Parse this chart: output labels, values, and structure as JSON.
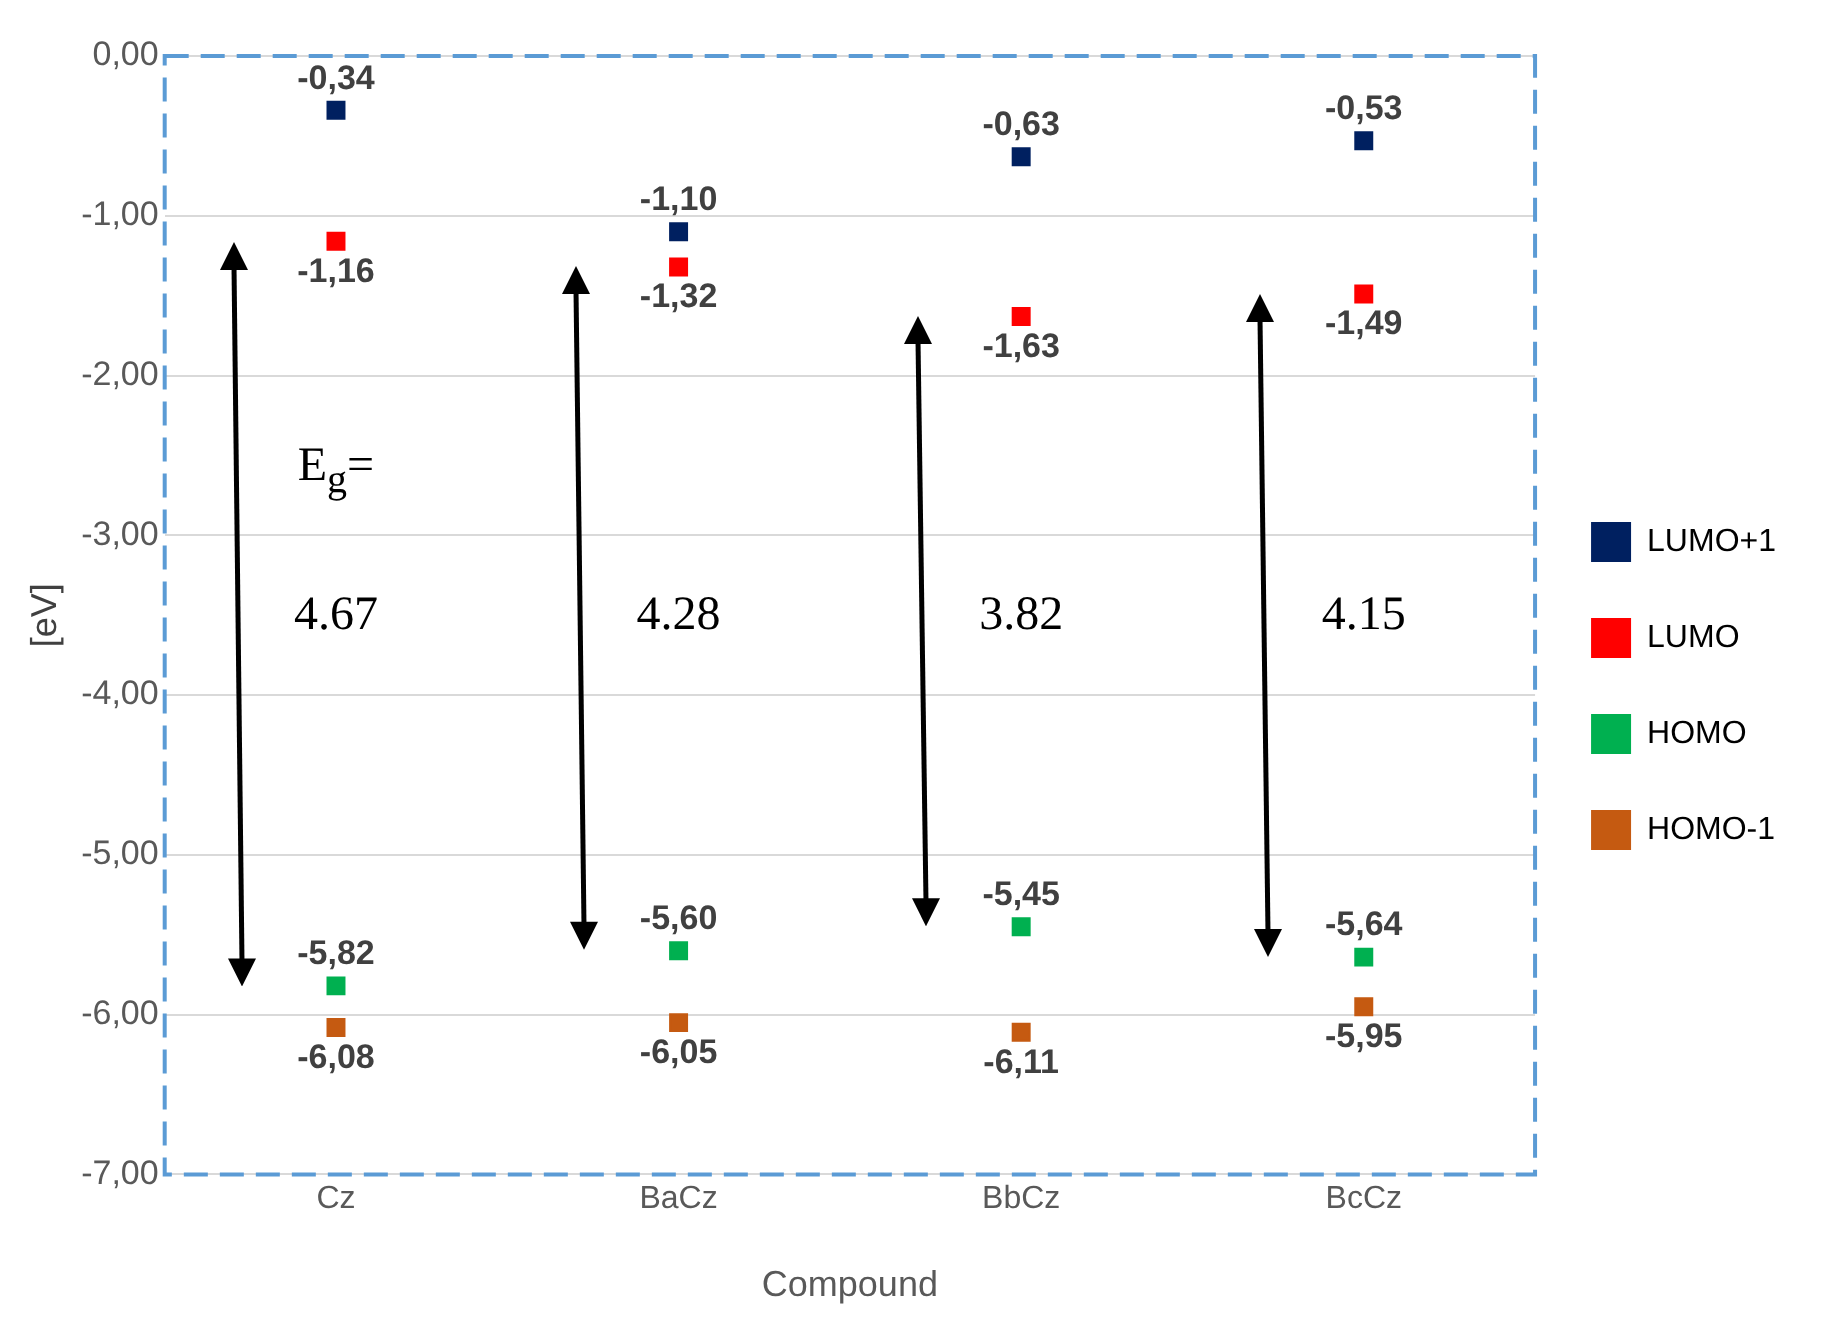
{
  "chart_data": {
    "type": "scatter",
    "xlabel": "Compound",
    "ylabel": "[eV]",
    "categories": [
      "Cz",
      "BaCz",
      "BbCz",
      "BcCz"
    ],
    "ylim": [
      -7,
      0
    ],
    "yticks": [
      {
        "value": 0,
        "label": "0,00"
      },
      {
        "value": -1,
        "label": "-1,00"
      },
      {
        "value": -2,
        "label": "-2,00"
      },
      {
        "value": -3,
        "label": "-3,00"
      },
      {
        "value": -4,
        "label": "-4,00"
      },
      {
        "value": -5,
        "label": "-5,00"
      },
      {
        "value": -6,
        "label": "-6,00"
      },
      {
        "value": -7,
        "label": "-7,00"
      }
    ],
    "grid": "y",
    "legend": "right",
    "marker": "square",
    "series": [
      {
        "name": "LUMO+1",
        "color": "#002060",
        "x": [
          "Cz",
          "BaCz",
          "BbCz",
          "BcCz"
        ],
        "values": [
          -0.34,
          -1.1,
          -0.63,
          -0.53
        ],
        "value_labels": [
          "-0,34",
          "-1,10",
          "-0,63",
          "-0,53"
        ]
      },
      {
        "name": "LUMO",
        "color": "#ff0000",
        "x": [
          "Cz",
          "BaCz",
          "BbCz",
          "BcCz"
        ],
        "values": [
          -1.16,
          -1.32,
          -1.63,
          -1.49
        ],
        "value_labels": [
          "-1,16",
          "-1,32",
          "-1,63",
          "-1,49"
        ]
      },
      {
        "name": "HOMO",
        "color": "#00b050",
        "x": [
          "Cz",
          "BaCz",
          "BbCz",
          "BcCz"
        ],
        "values": [
          -5.82,
          -5.6,
          -5.45,
          -5.64
        ],
        "value_labels": [
          "-5,82",
          "-5,60",
          "-5,45",
          "-5,64"
        ]
      },
      {
        "name": "HOMO-1",
        "color": "#c55a11",
        "x": [
          "Cz",
          "BaCz",
          "BbCz",
          "BcCz"
        ],
        "values": [
          -6.08,
          -6.05,
          -6.11,
          -5.95
        ],
        "value_labels": [
          "-6,08",
          "-6,05",
          "-6,11",
          "-5,95"
        ]
      }
    ],
    "annotations": [
      "E$_{g}$=",
      "4.67",
      "4.28",
      "3.82",
      "4.15"
    ]
  }
}
